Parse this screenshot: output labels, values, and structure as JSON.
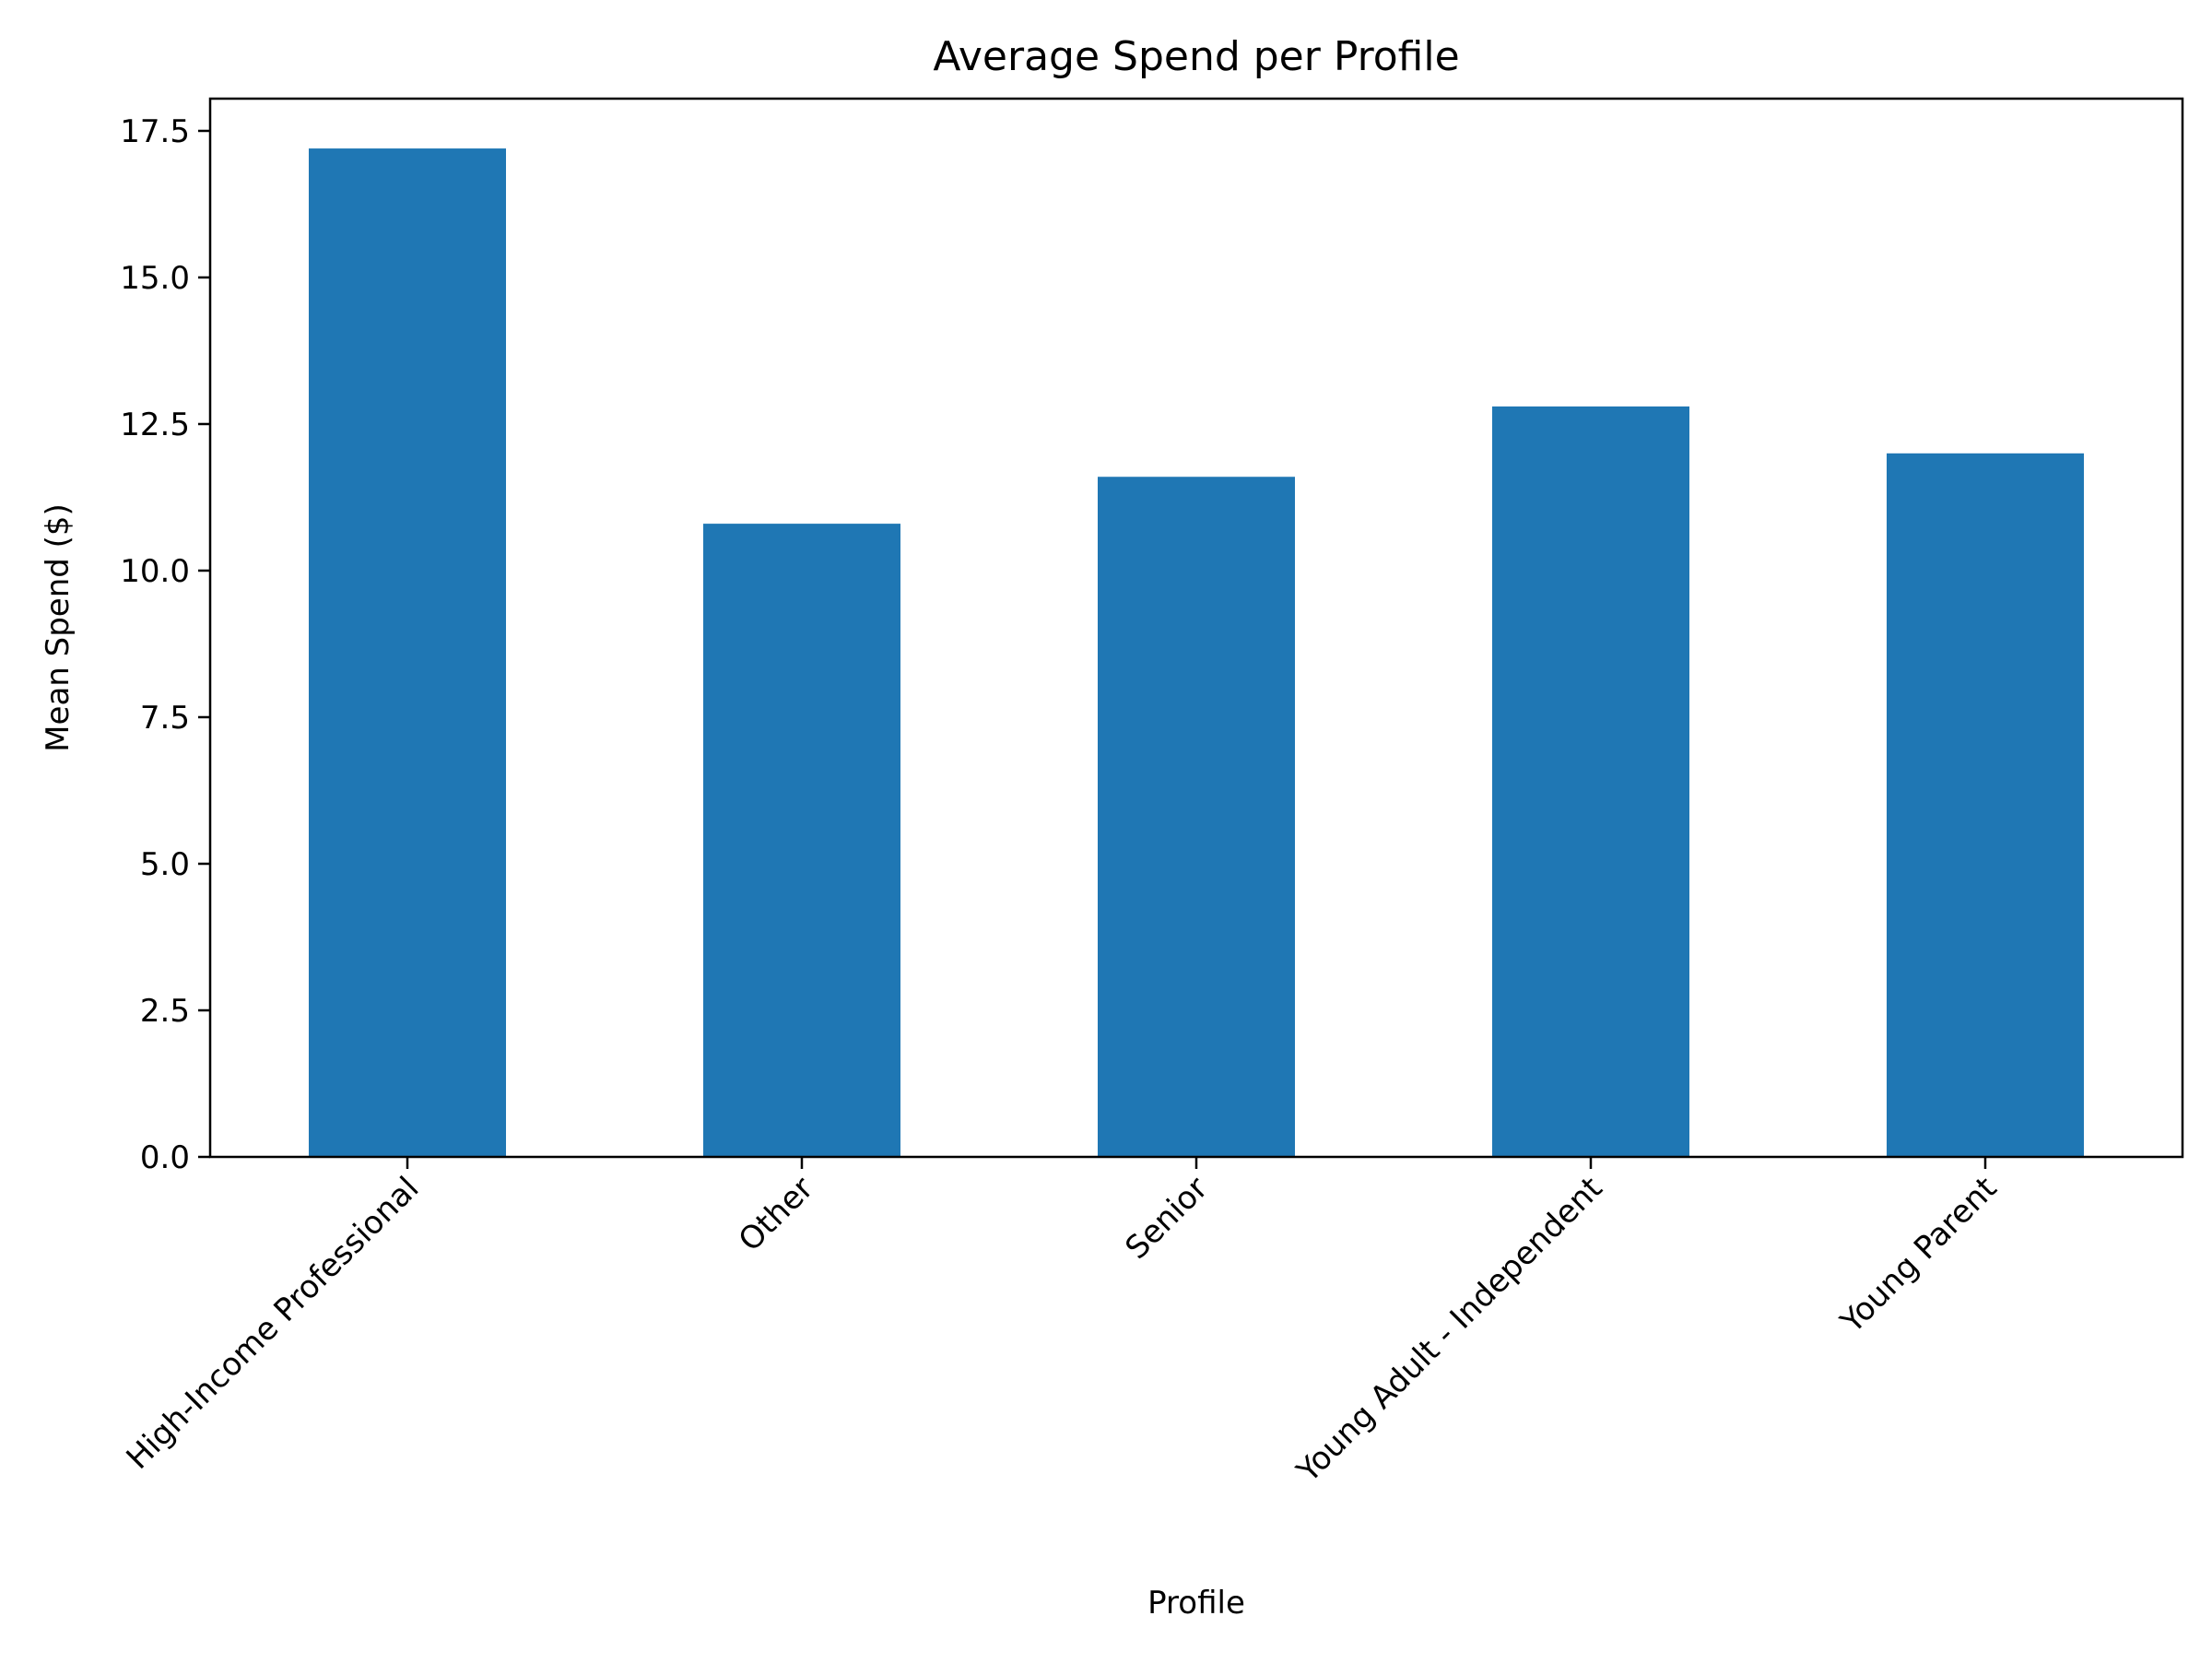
{
  "chart_data": {
    "type": "bar",
    "title": "Average Spend per Profile",
    "xlabel": "Profile",
    "ylabel": "Mean Spend ($)",
    "categories": [
      "High-Income Professional",
      "Other",
      "Senior",
      "Young Adult - Independent",
      "Young Parent"
    ],
    "values": [
      17.2,
      10.8,
      11.6,
      12.8,
      12.0
    ],
    "ylim": [
      0,
      18.05
    ],
    "yticks": [
      0.0,
      2.5,
      5.0,
      7.5,
      10.0,
      12.5,
      15.0,
      17.5
    ],
    "ytick_labels": [
      "0.0",
      "2.5",
      "5.0",
      "7.5",
      "10.0",
      "12.5",
      "15.0",
      "17.5"
    ],
    "bar_color": "#1f77b4",
    "grid": false,
    "legend": "none",
    "xtick_rotation_deg": 45
  }
}
